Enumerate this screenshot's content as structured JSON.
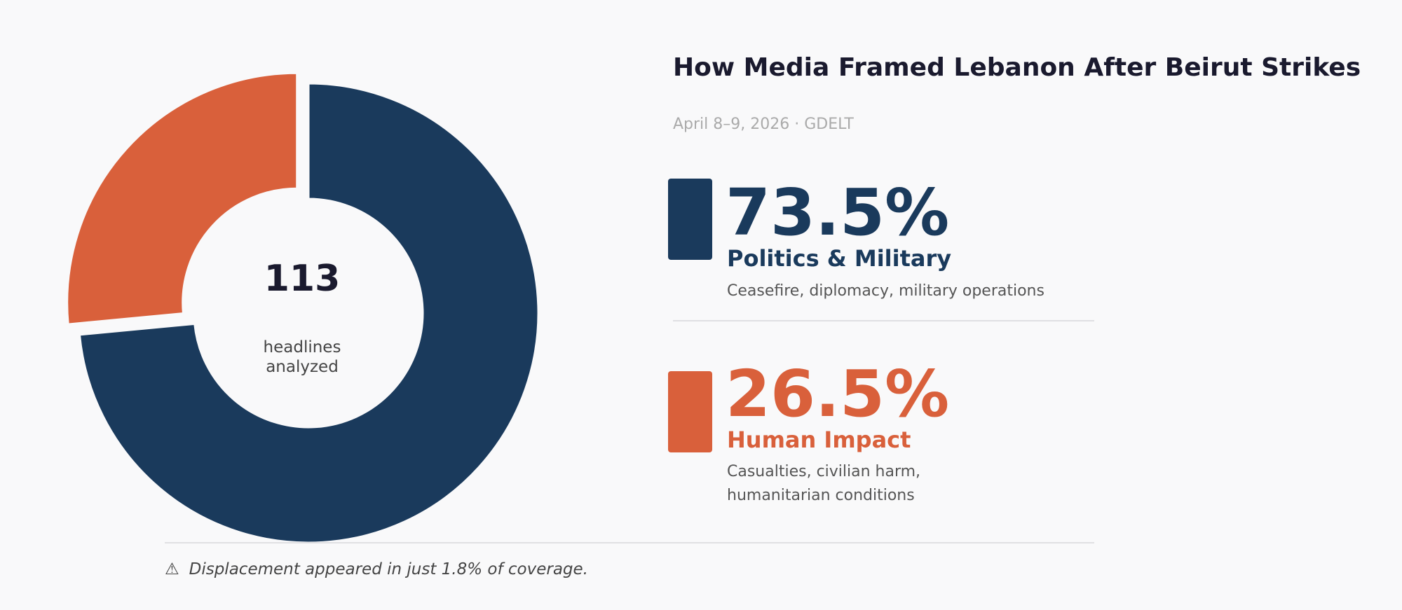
{
  "chart_data": {
    "type": "pie",
    "title": "How Media Framed Lebanon After Beirut Strikes",
    "subtitle": "April 8–9, 2026  ·  GDELT",
    "total": "113",
    "total_label": "headlines analyzed",
    "series": [
      {
        "name": "Politics & Military",
        "value": 73.5,
        "label": "73.5%",
        "description": "Ceasefire, diplomacy, military operations",
        "color": "#1a3a5c"
      },
      {
        "name": "Human Impact",
        "value": 26.5,
        "label": "26.5%",
        "description": "Casualties, civilian harm, humanitarian conditions",
        "color": "#d9603b"
      }
    ],
    "footnote": "Displacement appeared in just 1.8% of coverage.",
    "footnote_icon": "warning-icon"
  }
}
